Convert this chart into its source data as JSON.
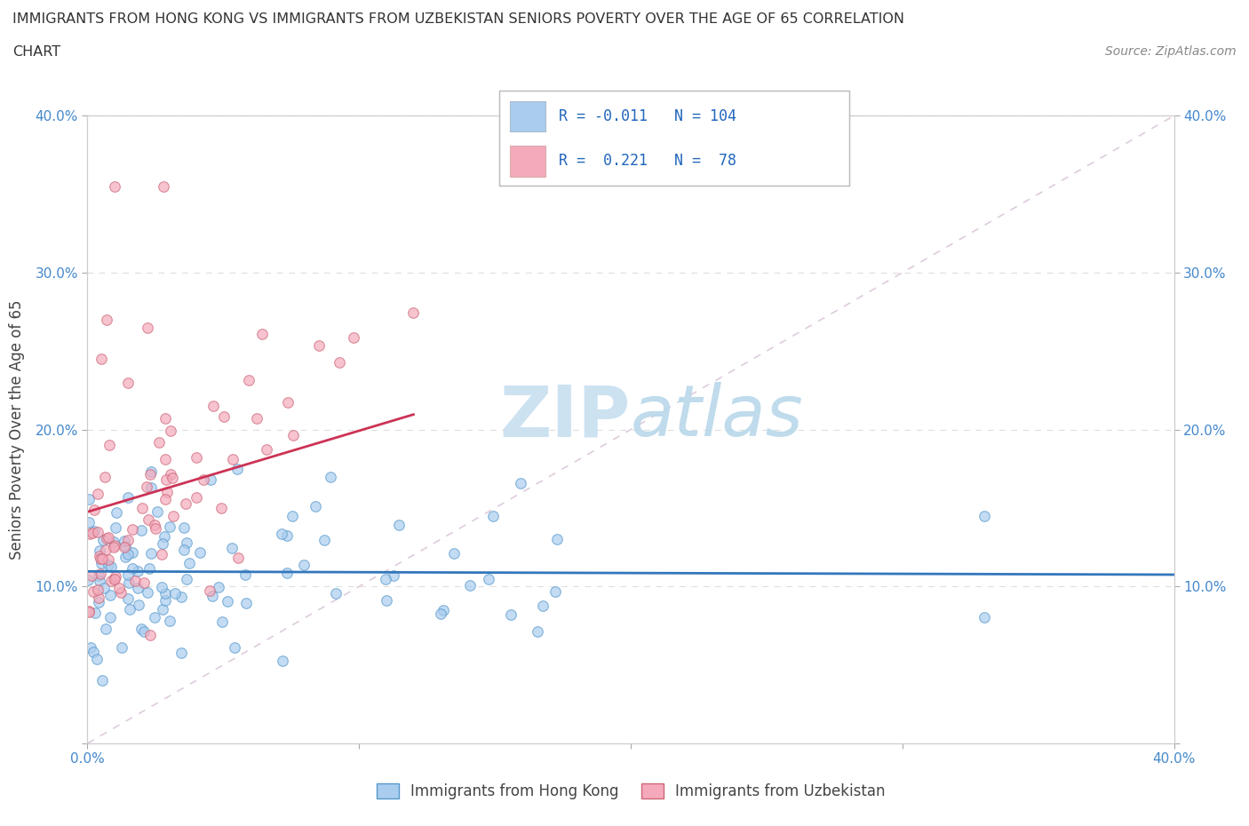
{
  "title_line1": "IMMIGRANTS FROM HONG KONG VS IMMIGRANTS FROM UZBEKISTAN SENIORS POVERTY OVER THE AGE OF 65 CORRELATION",
  "title_line2": "CHART",
  "source": "Source: ZipAtlas.com",
  "ylabel": "Seniors Poverty Over the Age of 65",
  "xlim": [
    0.0,
    0.4
  ],
  "ylim": [
    0.0,
    0.4
  ],
  "xticks": [
    0.0,
    0.1,
    0.2,
    0.3,
    0.4
  ],
  "yticks": [
    0.0,
    0.1,
    0.2,
    0.3,
    0.4
  ],
  "xticklabels_left": [
    "0.0%",
    "",
    "",
    "",
    ""
  ],
  "xticklabels_bottom": [
    "0.0%",
    "",
    "",
    "",
    "40.0%"
  ],
  "yticklabels_left": [
    "",
    "10.0%",
    "20.0%",
    "30.0%",
    "40.0%"
  ],
  "yticklabels_right": [
    "",
    "10.0%",
    "20.0%",
    "30.0%",
    "40.0%"
  ],
  "hk_color": "#aaccee",
  "uz_color": "#f4aabb",
  "hk_edge_color": "#5599cc",
  "uz_edge_color": "#cc6677",
  "hk_line_color": "#3377bb",
  "uz_line_color": "#cc3355",
  "ref_line_color": "#ddccdd",
  "hk_R": -0.011,
  "hk_N": 104,
  "uz_R": 0.221,
  "uz_N": 78,
  "watermark_zip_color": "#c8dff0",
  "watermark_atlas_color": "#b8d8ea",
  "background_color": "#ffffff",
  "grid_color": "#dddddd",
  "title_color": "#333333",
  "axis_label_color": "#444444",
  "tick_color": "#4488cc",
  "legend_text_color": "#2266bb",
  "marker_size": 70,
  "marker_alpha": 0.7,
  "marker_linewidth": 0.8
}
